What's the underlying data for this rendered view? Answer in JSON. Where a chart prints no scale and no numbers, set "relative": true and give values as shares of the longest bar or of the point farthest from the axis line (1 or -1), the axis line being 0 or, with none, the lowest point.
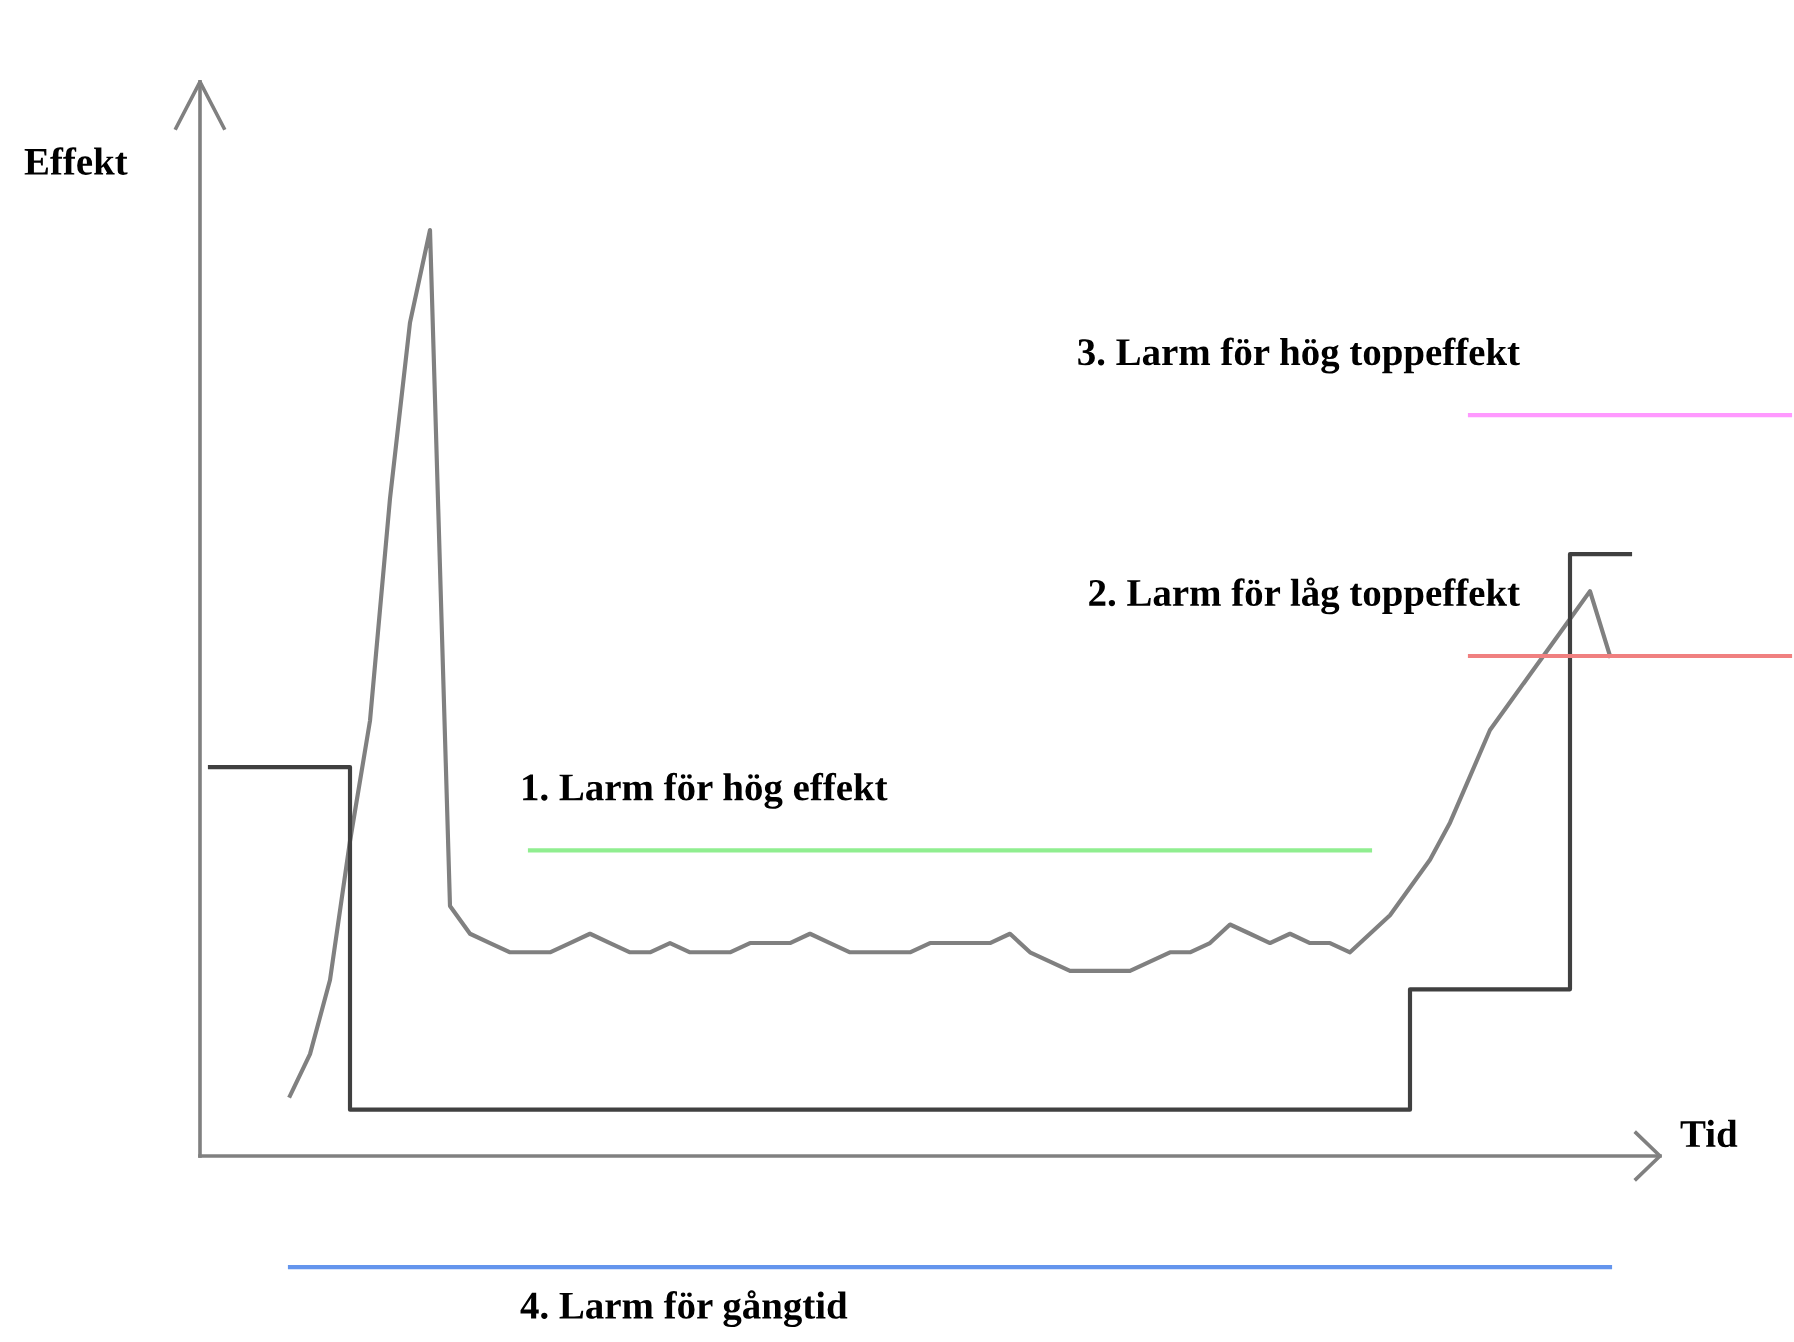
{
  "chart_data": {
    "type": "line",
    "relative": true,
    "xlabel": "Tid",
    "ylabel": "Effekt",
    "categories": [
      null,
      null,
      null,
      null,
      null,
      null,
      null,
      null,
      null,
      null,
      null,
      null,
      null,
      null,
      null,
      null,
      null,
      null,
      null,
      null,
      null,
      null,
      null,
      null,
      null,
      null,
      null,
      null,
      null,
      null,
      null,
      null,
      null,
      null,
      null,
      null,
      null,
      null,
      null,
      null,
      null,
      null,
      null,
      null,
      null,
      null,
      null,
      null,
      null,
      null,
      null,
      null,
      null,
      null,
      null,
      null,
      null,
      null,
      null,
      null,
      null,
      null,
      null,
      null,
      null,
      null,
      null,
      null,
      null,
      null,
      null,
      null,
      null,
      null,
      null,
      null,
      null,
      null,
      null,
      null
    ],
    "series": [
      {
        "color": "#808080",
        "values": [
          null,
          null,
          null,
          null,
          0.065,
          0.11,
          0.19,
          0.34,
          0.47,
          0.71,
          0.9,
          1.0,
          0.27,
          0.24,
          0.23,
          0.22,
          0.22,
          0.22,
          0.23,
          0.24,
          0.23,
          0.22,
          0.22,
          0.23,
          0.22,
          0.22,
          0.22,
          0.23,
          0.23,
          0.23,
          0.24,
          0.23,
          0.22,
          0.22,
          0.22,
          0.22,
          0.23,
          0.23,
          0.23,
          0.23,
          0.24,
          0.22,
          0.21,
          0.2,
          0.2,
          0.2,
          0.2,
          0.21,
          0.22,
          0.22,
          0.23,
          0.25,
          0.24,
          0.23,
          0.24,
          0.23,
          0.23,
          0.22,
          0.24,
          0.26,
          0.29,
          0.32,
          0.36,
          0.41,
          0.46,
          0.49,
          0.52,
          0.55,
          0.58,
          0.61,
          0.54,
          null,
          null,
          null,
          null,
          null,
          null,
          null,
          null,
          null
        ]
      },
      {
        "type": "step",
        "color": "#404040",
        "values": [
          0.42,
          0.42,
          0.42,
          0.42,
          0.42,
          0.42,
          0.42,
          0.42,
          0.05,
          0.05,
          0.05,
          0.05,
          0.05,
          0.05,
          0.05,
          0.05,
          0.05,
          0.05,
          0.05,
          0.05,
          0.05,
          0.05,
          0.05,
          0.05,
          0.05,
          0.05,
          0.05,
          0.05,
          0.05,
          0.05,
          0.05,
          0.05,
          0.05,
          0.05,
          0.05,
          0.05,
          0.05,
          0.05,
          0.05,
          0.05,
          0.05,
          0.05,
          0.05,
          0.05,
          0.05,
          0.05,
          0.05,
          0.05,
          0.05,
          0.05,
          0.05,
          0.05,
          0.05,
          0.05,
          0.05,
          0.05,
          0.05,
          0.05,
          0.05,
          0.05,
          0.05,
          0.18,
          0.18,
          0.18,
          0.18,
          0.18,
          0.18,
          0.18,
          0.18,
          0.65,
          0.65,
          0.65,
          null,
          null,
          null,
          null,
          null,
          null,
          null,
          null
        ]
      },
      {
        "name": "1. Larm för hög effekt",
        "color": "#90ee90",
        "values": [
          null,
          null,
          null,
          null,
          null,
          null,
          null,
          null,
          null,
          null,
          null,
          null,
          null,
          null,
          null,
          null,
          0.33,
          0.33,
          0.33,
          0.33,
          0.33,
          0.33,
          0.33,
          0.33,
          0.33,
          0.33,
          0.33,
          0.33,
          0.33,
          0.33,
          0.33,
          0.33,
          0.33,
          0.33,
          0.33,
          0.33,
          0.33,
          0.33,
          0.33,
          0.33,
          0.33,
          0.33,
          0.33,
          0.33,
          0.33,
          0.33,
          0.33,
          0.33,
          0.33,
          0.33,
          0.33,
          0.33,
          0.33,
          0.33,
          0.33,
          0.33,
          0.33,
          0.33,
          0.33,
          null,
          null,
          null,
          null,
          null,
          null,
          null,
          null,
          null,
          null,
          null,
          null,
          null,
          null,
          null,
          null,
          null,
          null,
          null,
          null,
          null
        ]
      },
      {
        "name": "2. Larm för låg toppeffekt",
        "color": "#f08080",
        "values": [
          null,
          null,
          null,
          null,
          null,
          null,
          null,
          null,
          null,
          null,
          null,
          null,
          null,
          null,
          null,
          null,
          null,
          null,
          null,
          null,
          null,
          null,
          null,
          null,
          null,
          null,
          null,
          null,
          null,
          null,
          null,
          null,
          null,
          null,
          null,
          null,
          null,
          null,
          null,
          null,
          null,
          null,
          null,
          null,
          null,
          null,
          null,
          null,
          null,
          null,
          null,
          null,
          null,
          null,
          null,
          null,
          null,
          null,
          null,
          null,
          null,
          null,
          null,
          0.54,
          0.54,
          0.54,
          0.54,
          0.54,
          0.54,
          0.54,
          0.54,
          0.54,
          0.54,
          0.54,
          0.54,
          0.54,
          0.54,
          0.54,
          0.54,
          0.54
        ]
      },
      {
        "name": "3. Larm för hög toppeffekt",
        "color": "#ff99ff",
        "values": [
          null,
          null,
          null,
          null,
          null,
          null,
          null,
          null,
          null,
          null,
          null,
          null,
          null,
          null,
          null,
          null,
          null,
          null,
          null,
          null,
          null,
          null,
          null,
          null,
          null,
          null,
          null,
          null,
          null,
          null,
          null,
          null,
          null,
          null,
          null,
          null,
          null,
          null,
          null,
          null,
          null,
          null,
          null,
          null,
          null,
          null,
          null,
          null,
          null,
          null,
          null,
          null,
          null,
          null,
          null,
          null,
          null,
          null,
          null,
          null,
          null,
          null,
          null,
          0.8,
          0.8,
          0.8,
          0.8,
          0.8,
          0.8,
          0.8,
          0.8,
          0.8,
          0.8,
          0.8,
          0.8,
          0.8,
          0.8,
          0.8,
          0.8,
          0.8
        ]
      },
      {
        "name": "4. Larm för gångtid",
        "color": "#6495ed",
        "values": [
          null,
          null,
          null,
          null,
          -0.12,
          -0.12,
          -0.12,
          -0.12,
          -0.12,
          -0.12,
          -0.12,
          -0.12,
          -0.12,
          -0.12,
          -0.12,
          -0.12,
          -0.12,
          -0.12,
          -0.12,
          -0.12,
          -0.12,
          -0.12,
          -0.12,
          -0.12,
          -0.12,
          -0.12,
          -0.12,
          -0.12,
          -0.12,
          -0.12,
          -0.12,
          -0.12,
          -0.12,
          -0.12,
          -0.12,
          -0.12,
          -0.12,
          -0.12,
          -0.12,
          -0.12,
          -0.12,
          -0.12,
          -0.12,
          -0.12,
          -0.12,
          -0.12,
          -0.12,
          -0.12,
          -0.12,
          -0.12,
          -0.12,
          -0.12,
          -0.12,
          -0.12,
          -0.12,
          -0.12,
          -0.12,
          -0.12,
          -0.12,
          -0.12,
          -0.12,
          -0.12,
          -0.12,
          -0.12,
          -0.12,
          -0.12,
          -0.12,
          -0.12,
          -0.12,
          -0.12,
          -0.12,
          null,
          null,
          null,
          null,
          null,
          null,
          null,
          null,
          null
        ]
      }
    ]
  }
}
